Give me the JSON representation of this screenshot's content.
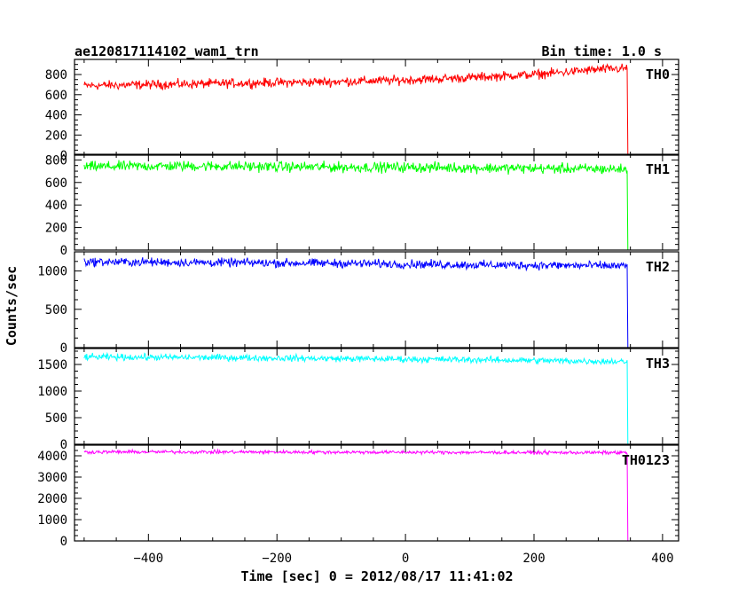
{
  "header": {
    "title": "ae120817114102_wam1_trn",
    "bin_time": "Bin time: 1.0 s"
  },
  "chart_data": {
    "type": "line",
    "xlabel": "Time [sec] 0 = 2012/08/17 11:41:02",
    "ylabel": "Counts/sec",
    "xlim": [
      -515,
      425
    ],
    "x_ticks": [
      -400,
      -200,
      0,
      200,
      400
    ],
    "drop_time": 345,
    "data_start": -500,
    "panels": [
      {
        "name": "TH0",
        "color": "#ff0000",
        "ylim": [
          0,
          950
        ],
        "y_ticks": [
          0,
          200,
          400,
          600,
          800
        ],
        "trend": [
          [
            -500,
            690
          ],
          [
            -400,
            700
          ],
          [
            -300,
            710
          ],
          [
            -200,
            720
          ],
          [
            -100,
            730
          ],
          [
            0,
            745
          ],
          [
            100,
            770
          ],
          [
            200,
            800
          ],
          [
            300,
            850
          ],
          [
            340,
            860
          ]
        ],
        "noise": 45,
        "tail": 0
      },
      {
        "name": "TH1",
        "color": "#00ff00",
        "ylim": [
          0,
          850
        ],
        "y_ticks": [
          0,
          200,
          400,
          600,
          800
        ],
        "trend": [
          [
            -500,
            740
          ],
          [
            -400,
            745
          ],
          [
            -300,
            745
          ],
          [
            -200,
            740
          ],
          [
            -100,
            735
          ],
          [
            0,
            735
          ],
          [
            100,
            730
          ],
          [
            200,
            725
          ],
          [
            300,
            720
          ],
          [
            340,
            718
          ]
        ],
        "noise": 45,
        "tail": 0
      },
      {
        "name": "TH2",
        "color": "#0000ff",
        "ylim": [
          0,
          1250
        ],
        "y_ticks": [
          0,
          500,
          1000
        ],
        "trend": [
          [
            -500,
            1120
          ],
          [
            -300,
            1110
          ],
          [
            -100,
            1100
          ],
          [
            100,
            1080
          ],
          [
            300,
            1070
          ],
          [
            340,
            1065
          ]
        ],
        "noise": 55,
        "tail": 0
      },
      {
        "name": "TH3",
        "color": "#00ffff",
        "ylim": [
          0,
          1800
        ],
        "y_ticks": [
          0,
          500,
          1000,
          1500
        ],
        "trend": [
          [
            -500,
            1640
          ],
          [
            -300,
            1630
          ],
          [
            -100,
            1610
          ],
          [
            100,
            1590
          ],
          [
            300,
            1560
          ],
          [
            340,
            1555
          ]
        ],
        "noise": 60,
        "tail": 0
      },
      {
        "name": "TH0123",
        "color": "#ff00ff",
        "ylim": [
          0,
          4500
        ],
        "y_ticks": [
          0,
          1000,
          2000,
          3000,
          4000
        ],
        "trend": [
          [
            -500,
            4180
          ],
          [
            -300,
            4180
          ],
          [
            -100,
            4170
          ],
          [
            100,
            4160
          ],
          [
            300,
            4150
          ],
          [
            340,
            4150
          ]
        ],
        "noise": 80,
        "tail": 0
      }
    ]
  }
}
